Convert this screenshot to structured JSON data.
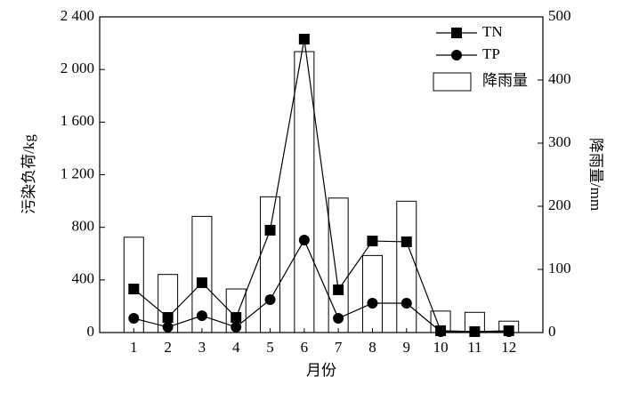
{
  "chart_data": {
    "type": "combo",
    "ylabel": "污染负荷/kg",
    "y2label": "降雨量/mm",
    "xlabel": "月份",
    "categories": [
      "1",
      "2",
      "3",
      "4",
      "5",
      "6",
      "7",
      "8",
      "9",
      "10",
      "11",
      "12"
    ],
    "series": [
      {
        "name": "TN",
        "type": "line",
        "marker": "square",
        "color": "#000000",
        "axis": "y",
        "values": [
          331,
          115,
          379,
          115,
          778,
          2231,
          325,
          696,
          690,
          14,
          7,
          14
        ]
      },
      {
        "name": "TP",
        "type": "line",
        "marker": "circle",
        "color": "#000000",
        "axis": "y",
        "values": [
          108,
          41,
          128,
          41,
          250,
          703,
          108,
          223,
          223,
          7,
          7,
          7
        ]
      },
      {
        "name": "降雨量",
        "type": "bar",
        "color": "#ffffff",
        "axis": "y2",
        "values": [
          151,
          92,
          184,
          69,
          215,
          445,
          213,
          122,
          208,
          34,
          32,
          18
        ]
      }
    ],
    "ylim": [
      0,
      2400
    ],
    "yticks": [
      0,
      400,
      800,
      {
        "value": 1200,
        "label": "1 200"
      },
      {
        "value": 1600,
        "label": "1 600"
      },
      {
        "value": 2000,
        "label": "2 000"
      },
      {
        "value": 2400,
        "label": "2 400"
      }
    ],
    "y2lim": [
      0,
      500
    ],
    "y2ticks": [
      0,
      100,
      200,
      300,
      400,
      500
    ],
    "legend": "upper right"
  }
}
